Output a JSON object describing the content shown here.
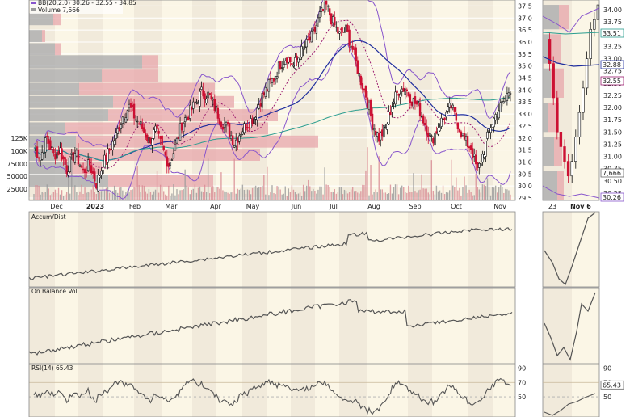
{
  "chart_data": {
    "type": "candlestick",
    "legend": {
      "bb": "BB(20,2.0) 30.26 - 32.55 - 34.85",
      "volume": "Volume 7,666"
    },
    "price_axis": {
      "ylim": [
        29.4,
        37.75
      ],
      "ticks": [
        "37.5",
        "37.0",
        "36.5",
        "36.0",
        "35.5",
        "35.0",
        "34.5",
        "34.0",
        "33.5",
        "33.0",
        "32.5",
        "32.0",
        "31.5",
        "31.0",
        "30.5",
        "30.0",
        "29.5"
      ]
    },
    "volume_axis": {
      "ticks": [
        "125K",
        "100K",
        "75000",
        "50000",
        "25000"
      ]
    },
    "x_labels": [
      "Dec",
      "2023",
      "Feb",
      "Mar",
      "Apr",
      "May",
      "Jun",
      "Jul",
      "Aug",
      "Sep",
      "Oct",
      "Nov"
    ],
    "ohlc_points": [
      [
        0,
        31.6
      ],
      [
        4,
        31.2
      ],
      [
        8,
        32.0
      ],
      [
        12,
        31.3
      ],
      [
        16,
        31.5
      ],
      [
        20,
        30.7
      ],
      [
        25,
        31.4
      ],
      [
        30,
        30.6
      ],
      [
        34,
        30.9
      ],
      [
        38,
        30.1
      ],
      [
        42,
        30.9
      ],
      [
        46,
        31.5
      ],
      [
        50,
        32.1
      ],
      [
        54,
        32.9
      ],
      [
        58,
        33.3
      ],
      [
        62,
        32.8
      ],
      [
        66,
        32.4
      ],
      [
        70,
        31.9
      ],
      [
        74,
        32.3
      ],
      [
        78,
        31.6
      ],
      [
        82,
        30.9
      ],
      [
        86,
        31.6
      ],
      [
        90,
        32.6
      ],
      [
        94,
        33.0
      ],
      [
        98,
        33.4
      ],
      [
        102,
        33.9
      ],
      [
        106,
        33.8
      ],
      [
        110,
        33.3
      ],
      [
        114,
        32.7
      ],
      [
        118,
        32.4
      ],
      [
        122,
        31.8
      ],
      [
        126,
        32.3
      ],
      [
        130,
        32.6
      ],
      [
        134,
        32.9
      ],
      [
        138,
        33.6
      ],
      [
        142,
        34.1
      ],
      [
        146,
        34.5
      ],
      [
        150,
        35.1
      ],
      [
        154,
        35.4
      ],
      [
        158,
        35.0
      ],
      [
        162,
        35.5
      ],
      [
        166,
        35.9
      ],
      [
        170,
        36.3
      ],
      [
        174,
        37.1
      ],
      [
        178,
        37.5
      ],
      [
        182,
        36.8
      ],
      [
        186,
        36.3
      ],
      [
        190,
        36.5
      ],
      [
        194,
        35.7
      ],
      [
        198,
        34.6
      ],
      [
        202,
        33.8
      ],
      [
        206,
        32.6
      ],
      [
        210,
        32.0
      ],
      [
        214,
        32.4
      ],
      [
        218,
        33.4
      ],
      [
        222,
        34.0
      ],
      [
        226,
        34.1
      ],
      [
        230,
        33.6
      ],
      [
        234,
        33.3
      ],
      [
        238,
        32.6
      ],
      [
        242,
        31.9
      ],
      [
        246,
        32.5
      ],
      [
        250,
        32.9
      ],
      [
        254,
        33.3
      ],
      [
        258,
        32.6
      ],
      [
        262,
        31.9
      ],
      [
        266,
        31.6
      ],
      [
        270,
        30.6
      ],
      [
        274,
        31.5
      ],
      [
        278,
        32.5
      ],
      [
        282,
        33.1
      ],
      [
        286,
        33.5
      ],
      [
        290,
        34.1
      ]
    ],
    "series": [
      {
        "name": "Accum/Dist"
      },
      {
        "name": "On Balance Vol"
      },
      {
        "name": "RSI(14) 65.43"
      }
    ],
    "rsi_axis": {
      "ticks": [
        "90",
        "70",
        "50"
      ],
      "value_label": "65.43"
    },
    "zoom": {
      "x_labels": [
        "23",
        "Nov 6"
      ],
      "price_ticks": [
        "34.00",
        "33.75",
        "33.50",
        "33.25",
        "33.00",
        "32.75",
        "32.50",
        "32.25",
        "32.00",
        "31.75",
        "31.50",
        "31.25",
        "31.00",
        "30.75",
        "30.50",
        "30.25"
      ],
      "tags": [
        "33.51",
        "32.88",
        "32.55",
        "7,666",
        "30.26"
      ],
      "rsi_ticks": [
        "90",
        "70",
        "50"
      ],
      "rsi_tag": "65.43"
    }
  },
  "colors": {
    "up": "#111111",
    "down": "#cc1133",
    "bb": "#8855cc",
    "ma_long": "#2a9d8f",
    "ma_mid": "#1f2e9e",
    "ma_short": "#9b1b6e",
    "indicator": "#555555",
    "band_light": "#fbf6e6",
    "band_dark": "#f1eadb",
    "vbp_up": "#b0b0b0",
    "vbp_down": "#e7a5ab"
  }
}
